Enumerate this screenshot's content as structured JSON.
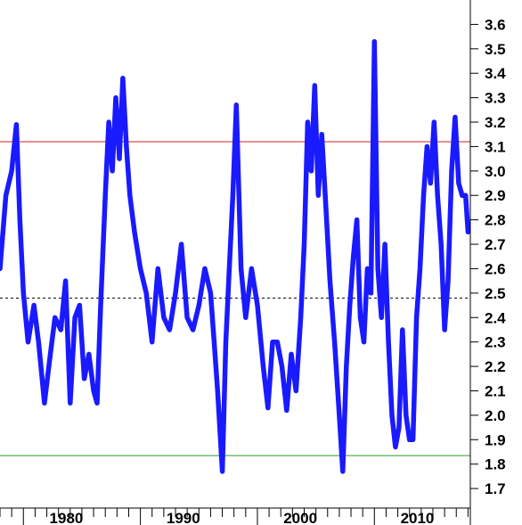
{
  "chart_data": {
    "type": "line",
    "title": "",
    "xlabel": "",
    "ylabel": "",
    "x_ticks": [
      "1980",
      "1990",
      "2000",
      "2010"
    ],
    "y_ticks": [
      "1.7",
      "1.8",
      "1.9",
      "2.0",
      "2.1",
      "2.2",
      "2.3",
      "2.4",
      "2.5",
      "2.6",
      "2.7",
      "2.8",
      "2.9",
      "3.0",
      "3.1",
      "3.2",
      "3.3",
      "3.4",
      "3.5",
      "3.6"
    ],
    "xlim": [
      1976,
      2016.2
    ],
    "ylim": [
      1.62,
      3.7
    ],
    "grid": false,
    "legend": "none",
    "series": [
      {
        "color": "#1a1aff",
        "x": [
          1976.0,
          1976.5,
          1977.0,
          1977.4,
          1977.7,
          1978.0,
          1978.4,
          1978.9,
          1979.3,
          1979.8,
          1980.3,
          1980.7,
          1981.2,
          1981.6,
          1982.0,
          1982.4,
          1982.8,
          1983.2,
          1983.6,
          1984.0,
          1984.3,
          1984.6,
          1985.0,
          1985.3,
          1985.6,
          1985.9,
          1986.2,
          1986.5,
          1986.8,
          1987.1,
          1987.5,
          1988.0,
          1988.5,
          1989.0,
          1989.5,
          1990.0,
          1990.5,
          1991.0,
          1991.5,
          1992.0,
          1992.5,
          1993.0,
          1993.5,
          1994.0,
          1994.3,
          1994.6,
          1995.0,
          1995.3,
          1995.6,
          1995.9,
          1996.2,
          1996.6,
          1997.0,
          1997.5,
          1998.0,
          1998.5,
          1998.9,
          1999.3,
          1999.7,
          2000.1,
          2000.5,
          2000.9,
          2001.3,
          2001.7,
          2002.0,
          2002.3,
          2002.6,
          2002.9,
          2003.2,
          2003.5,
          2003.8,
          2004.2,
          2004.6,
          2005.0,
          2005.3,
          2005.6,
          2005.9,
          2006.2,
          2006.5,
          2006.8,
          2007.1,
          2007.4,
          2007.7,
          2008.0,
          2008.3,
          2008.6,
          2008.9,
          2009.2,
          2009.5,
          2009.8,
          2010.1,
          2010.4,
          2010.7,
          2011.0,
          2011.3,
          2011.6,
          2011.9,
          2012.2,
          2012.5,
          2012.8,
          2013.1,
          2013.4,
          2013.7,
          2014.0,
          2014.3,
          2014.6,
          2014.9,
          2015.2,
          2015.5,
          2015.8,
          2016.0
        ],
        "values": [
          2.6,
          2.9,
          3.0,
          3.19,
          2.8,
          2.5,
          2.3,
          2.45,
          2.3,
          2.05,
          2.25,
          2.4,
          2.35,
          2.55,
          2.05,
          2.4,
          2.45,
          2.15,
          2.25,
          2.1,
          2.05,
          2.45,
          2.9,
          3.2,
          3.0,
          3.3,
          3.05,
          3.38,
          3.1,
          2.9,
          2.75,
          2.6,
          2.5,
          2.3,
          2.6,
          2.4,
          2.35,
          2.5,
          2.7,
          2.4,
          2.35,
          2.45,
          2.6,
          2.5,
          2.3,
          2.1,
          1.77,
          2.3,
          2.6,
          2.9,
          3.27,
          2.6,
          2.4,
          2.6,
          2.45,
          2.2,
          2.03,
          2.3,
          2.3,
          2.2,
          2.02,
          2.25,
          2.1,
          2.4,
          2.7,
          3.2,
          3.0,
          3.35,
          2.9,
          3.15,
          2.9,
          2.55,
          2.3,
          2.0,
          1.77,
          2.2,
          2.45,
          2.65,
          2.8,
          2.4,
          2.3,
          2.6,
          2.5,
          3.53,
          2.6,
          2.4,
          2.7,
          2.3,
          2.0,
          1.87,
          1.95,
          2.35,
          2.0,
          1.9,
          1.9,
          2.4,
          2.6,
          2.9,
          3.1,
          2.95,
          3.2,
          2.9,
          2.7,
          2.35,
          2.55,
          3.0,
          3.22,
          2.95,
          2.9,
          2.9,
          2.75
        ]
      }
    ],
    "reference_lines": [
      {
        "y": 3.12,
        "color": "#cc2222",
        "style": "solid"
      },
      {
        "y": 2.48,
        "color": "#000000",
        "style": "dashed"
      },
      {
        "y": 1.835,
        "color": "#2a9a2a",
        "style": "solid"
      }
    ]
  }
}
